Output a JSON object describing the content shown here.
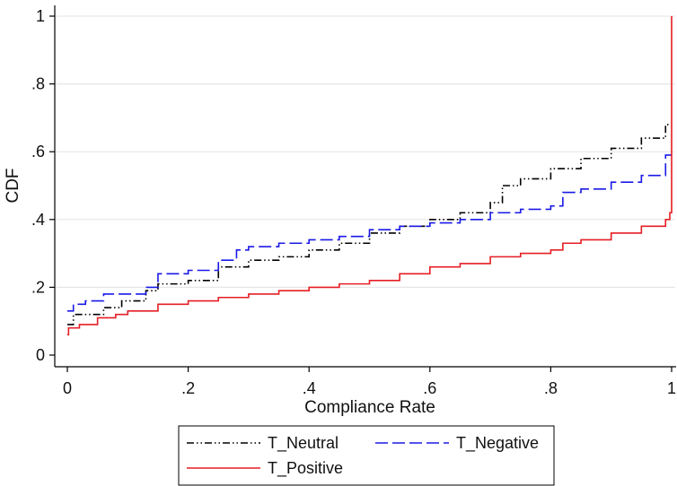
{
  "chart_data": {
    "type": "line",
    "title": "",
    "xlabel": "Compliance Rate",
    "ylabel": "CDF",
    "xlim": [
      0,
      1
    ],
    "ylim": [
      0,
      1
    ],
    "x_ticks": [
      0,
      0.2,
      0.4,
      0.6,
      0.8,
      1
    ],
    "x_tick_labels": [
      "0",
      ".2",
      ".4",
      ".6",
      ".8",
      "1"
    ],
    "y_ticks": [
      0,
      0.2,
      0.4,
      0.6,
      0.8,
      1
    ],
    "y_tick_labels": [
      "0",
      ".2",
      ".4",
      ".6",
      ".8",
      "1"
    ],
    "grid": "horizontal",
    "legend_position": "bottom",
    "series": [
      {
        "name": "T_Neutral",
        "color": "#000000",
        "line_style": "dash-dot-dot",
        "x": [
          0,
          0.01,
          0.03,
          0.06,
          0.09,
          0.13,
          0.15,
          0.2,
          0.25,
          0.3,
          0.35,
          0.4,
          0.45,
          0.5,
          0.55,
          0.6,
          0.65,
          0.7,
          0.72,
          0.75,
          0.8,
          0.85,
          0.9,
          0.95,
          0.99,
          1.0
        ],
        "y": [
          0.09,
          0.12,
          0.12,
          0.14,
          0.16,
          0.19,
          0.21,
          0.22,
          0.26,
          0.28,
          0.29,
          0.31,
          0.33,
          0.36,
          0.38,
          0.4,
          0.42,
          0.45,
          0.5,
          0.52,
          0.55,
          0.58,
          0.61,
          0.64,
          0.68,
          0.68
        ]
      },
      {
        "name": "T_Negative",
        "color": "#1a1ae6",
        "line_style": "dash",
        "x": [
          0,
          0.01,
          0.03,
          0.06,
          0.1,
          0.13,
          0.15,
          0.2,
          0.25,
          0.28,
          0.3,
          0.35,
          0.4,
          0.45,
          0.5,
          0.55,
          0.6,
          0.65,
          0.7,
          0.75,
          0.8,
          0.82,
          0.85,
          0.9,
          0.95,
          0.99,
          1.0
        ],
        "y": [
          0.13,
          0.15,
          0.16,
          0.18,
          0.18,
          0.2,
          0.24,
          0.25,
          0.28,
          0.31,
          0.32,
          0.33,
          0.34,
          0.35,
          0.37,
          0.38,
          0.39,
          0.4,
          0.42,
          0.43,
          0.44,
          0.48,
          0.49,
          0.51,
          0.53,
          0.59,
          0.59
        ]
      },
      {
        "name": "T_Positive",
        "color": "#e51e25",
        "line_style": "solid",
        "x": [
          0,
          0.002,
          0.02,
          0.05,
          0.08,
          0.1,
          0.15,
          0.2,
          0.25,
          0.3,
          0.35,
          0.4,
          0.45,
          0.5,
          0.55,
          0.6,
          0.65,
          0.7,
          0.75,
          0.8,
          0.82,
          0.85,
          0.9,
          0.95,
          0.99,
          0.997,
          1.0
        ],
        "y": [
          0.06,
          0.08,
          0.09,
          0.11,
          0.12,
          0.13,
          0.15,
          0.16,
          0.17,
          0.18,
          0.19,
          0.2,
          0.21,
          0.22,
          0.24,
          0.26,
          0.27,
          0.29,
          0.3,
          0.31,
          0.33,
          0.34,
          0.36,
          0.38,
          0.4,
          0.42,
          1.0
        ]
      }
    ]
  }
}
